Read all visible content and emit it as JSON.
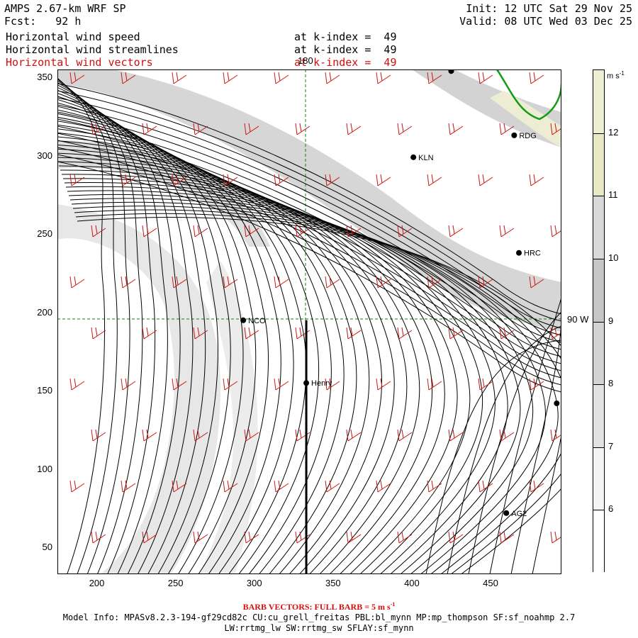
{
  "header": {
    "model_title": "AMPS 2.67-km WRF SP",
    "forecast": "Fcst:   92 h",
    "init": "Init: 12 UTC Sat 29 Nov 25",
    "valid": "Valid: 08 UTC Wed 03 Dec 25"
  },
  "fields": [
    {
      "name": "Horizontal wind speed",
      "level": "at k-index =  49",
      "color": "#000000"
    },
    {
      "name": "Horizontal wind streamlines",
      "level": "at k-index =  49",
      "color": "#000000"
    },
    {
      "name": "Horizontal wind vectors",
      "level": "at k-index =  49",
      "color": "#d01010"
    }
  ],
  "map": {
    "x_axis": {
      "range": [
        175,
        495
      ],
      "ticks": [
        200,
        250,
        300,
        350,
        400,
        450
      ]
    },
    "y_axis": {
      "range": [
        33,
        355
      ],
      "ticks": [
        50,
        100,
        150,
        200,
        250,
        300,
        350
      ]
    },
    "grid_labels": {
      "meridian_top": "180",
      "parallel_right": "90 W"
    },
    "grid_line_color": "#1a7a1a",
    "streamline_color": "#000000",
    "barb_color": "#d01010",
    "stations": [
      {
        "id": "NCO",
        "x": 293,
        "y": 195
      },
      {
        "id": "Henry",
        "x": 333,
        "y": 155
      },
      {
        "id": "KLN",
        "x": 401,
        "y": 299
      },
      {
        "id": "RDG",
        "x": 465,
        "y": 313
      },
      {
        "id": "HRC",
        "x": 468,
        "y": 238
      },
      {
        "id": "AG2",
        "x": 460,
        "y": 72
      },
      {
        "id": "",
        "x": 425,
        "y": 354
      },
      {
        "id": "",
        "x": 492,
        "y": 142
      }
    ],
    "transect": {
      "x": 333,
      "y_from": 33,
      "y_to": 195
    }
  },
  "colorbar": {
    "units": "m s",
    "units_exp": "-1",
    "levels": [
      6,
      7,
      8,
      9,
      10,
      11,
      12
    ],
    "segment_colors": [
      "#ffffff",
      "#f4f4f4",
      "#e2e2e2",
      "#d3d3d3",
      "#c6c6c6",
      "#d8d8d8",
      "#e8e8c4",
      "#eeeed2"
    ]
  },
  "footer": {
    "barb_note": "BARB VECTORS:  FULL BARB = 5 m s",
    "barb_note_exp": "-1",
    "model_info": "Model Info: MPASv8.2.3-194-gf29cd82c CU:cu_grell_freitas PBL:bl_mynn MP:mp_thompson SF:sf_noahmp 2.7",
    "model_info_2": "LW:rrtmg_lw SW:rrtmg_sw SFLAY:sf_mynn"
  }
}
